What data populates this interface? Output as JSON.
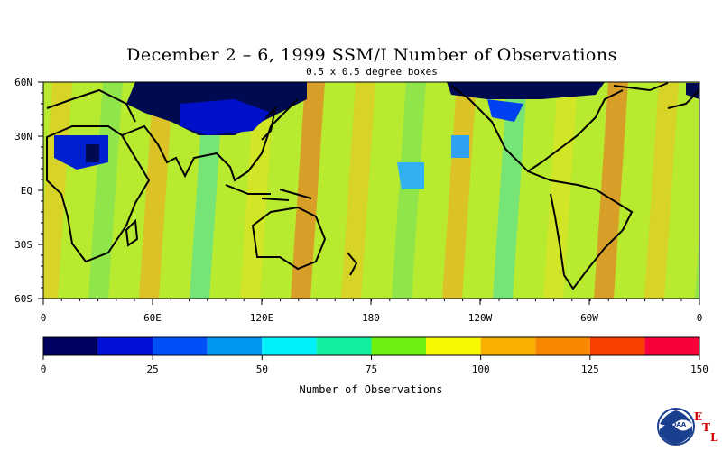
{
  "title": "December 2 – 6, 1999 SSM/I Number of Observations",
  "subtitle": "0.5 x 0.5 degree boxes",
  "map": {
    "lat_labels": [
      "60N",
      "30N",
      "EQ",
      "30S",
      "60S"
    ],
    "lon_labels": [
      "0",
      "60E",
      "120E",
      "180",
      "120W",
      "60W",
      "0"
    ]
  },
  "colorbar": {
    "tick_labels": [
      "0",
      "25",
      "50",
      "75",
      "100",
      "125",
      "150"
    ],
    "label": "Number of Observations",
    "colors": [
      "#000060",
      "#0010d8",
      "#0050f8",
      "#0098f0",
      "#00f0f8",
      "#10f0a0",
      "#70f010",
      "#f8f800",
      "#f8b000",
      "#f88800",
      "#f84000",
      "#f8003c"
    ]
  },
  "logo": {
    "text": "NOAA",
    "letters": [
      "E",
      "T",
      "L"
    ]
  }
}
